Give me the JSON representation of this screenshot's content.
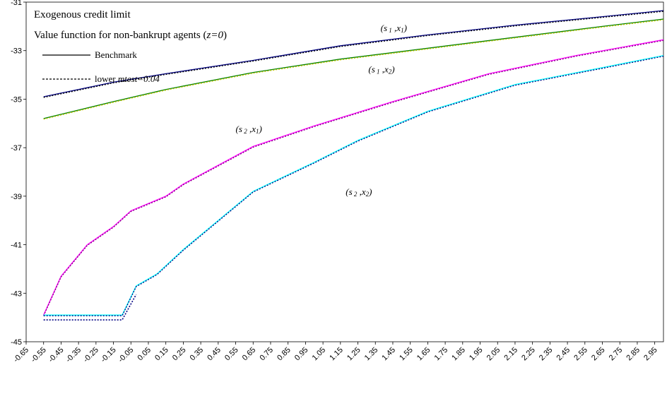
{
  "chart_data": {
    "type": "line",
    "title": "Exogenous credit limit",
    "subtitle_parts": [
      "Value function for non-bankrupt agents (",
      "z=0",
      ")"
    ],
    "xlabel": "",
    "ylabel": "",
    "xlim": [
      -0.65,
      3.0
    ],
    "ylim": [
      -45,
      -31
    ],
    "yticks": [
      -45,
      -43,
      -41,
      -39,
      -37,
      -35,
      -33,
      -31
    ],
    "xticks": [
      -0.65,
      -0.55,
      -0.45,
      -0.35,
      -0.25,
      -0.15,
      -0.05,
      0.05,
      0.15,
      0.25,
      0.35,
      0.45,
      0.55,
      0.65,
      0.75,
      0.85,
      0.95,
      1.05,
      1.15,
      1.25,
      1.35,
      1.45,
      1.55,
      1.65,
      1.75,
      1.85,
      1.95,
      2.05,
      2.15,
      2.25,
      2.35,
      2.45,
      2.55,
      2.65,
      2.75,
      2.85,
      2.95
    ],
    "xtick_labels": [
      "-0.65",
      "-0.55",
      "-0.45",
      "-0.35",
      "-0.25",
      "-0.15",
      "-0.05",
      "0.05",
      "0.15",
      "0.25",
      "0.35",
      "0.45",
      "0.55",
      "0.65",
      "0.75",
      "0.85",
      "0.95",
      "1.05",
      "1.15",
      "1.25",
      "1.35",
      "1.45",
      "1.55",
      "1.65",
      "1.75",
      "1.85",
      "1.95",
      "2.05",
      "2.15",
      "2.25",
      "2.35",
      "2.45",
      "2.55",
      "2.65",
      "2.75",
      "2.85",
      "2.95"
    ],
    "grid": false,
    "legend": {
      "placement": "top-left",
      "entries": [
        {
          "label_parts": [
            "Benchmark"
          ],
          "style": "solid"
        },
        {
          "label_parts": [
            "lower ",
            "mtest=0.04"
          ],
          "style": "dashed"
        }
      ]
    },
    "series": [
      {
        "benchmark_color": "#000080",
        "lower_color": "#000000",
        "points": [
          [
            -0.55,
            -34.9
          ],
          [
            -0.15,
            -34.3
          ],
          [
            0.15,
            -33.95
          ],
          [
            0.65,
            -33.4
          ],
          [
            1.15,
            -32.8
          ],
          [
            1.65,
            -32.35
          ],
          [
            2.15,
            -31.95
          ],
          [
            2.65,
            -31.6
          ],
          [
            3.0,
            -31.35
          ]
        ]
      },
      {
        "benchmark_color": "#008000",
        "lower_color": "#c8c800",
        "points": [
          [
            -0.55,
            -35.8
          ],
          [
            -0.15,
            -35.1
          ],
          [
            0.15,
            -34.6
          ],
          [
            0.65,
            -33.9
          ],
          [
            1.15,
            -33.35
          ],
          [
            1.65,
            -32.9
          ],
          [
            2.15,
            -32.45
          ],
          [
            2.65,
            -32.0
          ],
          [
            3.0,
            -31.7
          ]
        ]
      },
      {
        "benchmark_color": "#ff00ff",
        "lower_color": "#800080",
        "points": [
          [
            -0.55,
            -43.9
          ],
          [
            -0.45,
            -42.3
          ],
          [
            -0.3,
            -41.0
          ],
          [
            -0.15,
            -40.25
          ],
          [
            -0.05,
            -39.6
          ],
          [
            0.15,
            -39.0
          ],
          [
            0.25,
            -38.5
          ],
          [
            0.65,
            -36.95
          ],
          [
            1.0,
            -36.1
          ],
          [
            1.45,
            -35.1
          ],
          [
            2.0,
            -33.95
          ],
          [
            2.5,
            -33.2
          ],
          [
            3.0,
            -32.55
          ]
        ]
      },
      {
        "benchmark_color": "#00ffff",
        "lower_color": "#000080",
        "points": [
          [
            -0.55,
            -43.9
          ],
          [
            -0.1,
            -43.9
          ],
          [
            -0.02,
            -42.7
          ],
          [
            0.1,
            -42.2
          ],
          [
            0.25,
            -41.2
          ],
          [
            0.65,
            -38.8
          ],
          [
            1.0,
            -37.6
          ],
          [
            1.25,
            -36.7
          ],
          [
            1.65,
            -35.5
          ],
          [
            2.15,
            -34.4
          ],
          [
            2.65,
            -33.7
          ],
          [
            3.0,
            -33.2
          ]
        ]
      },
      {
        "benchmark_color": "#00ffff",
        "lower_color": "#000080",
        "lower_points": [
          [
            -0.55,
            -44.1
          ],
          [
            -0.1,
            -44.1
          ],
          [
            -0.02,
            -43.05
          ]
        ]
      }
    ],
    "annotations": [
      {
        "name": "s1x1",
        "x": 1.38,
        "y": -32.2
      },
      {
        "name": "s1x2",
        "x": 1.31,
        "y": -33.9
      },
      {
        "name": "s2x1",
        "x": 0.55,
        "y": -36.35
      },
      {
        "name": "s2x2",
        "x": 1.18,
        "y": -38.95
      }
    ]
  }
}
